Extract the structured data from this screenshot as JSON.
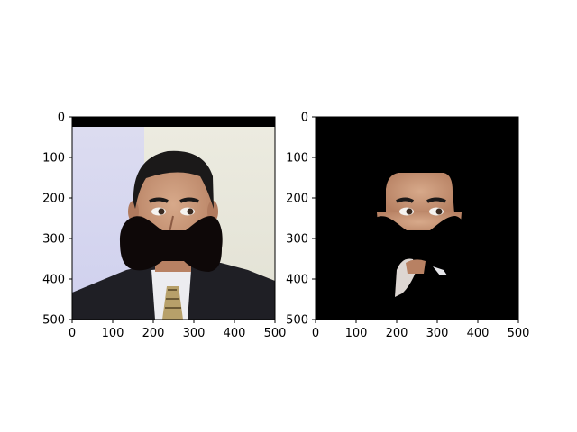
{
  "chart_data": [
    {
      "type": "image",
      "title": "",
      "xlim": [
        0,
        500
      ],
      "ylim": [
        500,
        0
      ],
      "x_ticks": [
        0,
        100,
        200,
        300,
        400,
        500
      ],
      "y_ticks": [
        0,
        100,
        200,
        300,
        400,
        500
      ],
      "x_tick_labels": [
        "0",
        "100",
        "200",
        "300",
        "400",
        "500"
      ],
      "y_tick_labels": [
        "0",
        "100",
        "200",
        "300",
        "400",
        "500"
      ],
      "content": "portrait photo with black bow-shaped occluder over mouth"
    },
    {
      "type": "image",
      "title": "",
      "xlim": [
        0,
        500
      ],
      "ylim": [
        500,
        0
      ],
      "x_ticks": [
        0,
        100,
        200,
        300,
        400,
        500
      ],
      "y_ticks": [
        0,
        100,
        200,
        300,
        400,
        500
      ],
      "x_tick_labels": [
        "0",
        "100",
        "200",
        "300",
        "400",
        "500"
      ],
      "y_tick_labels": [
        "0",
        "100",
        "200",
        "300",
        "400",
        "500"
      ],
      "content": "segmented face region on black background with bow-shaped mask"
    }
  ],
  "colors": {
    "background_left_top": "#d8d8ef",
    "background_right_top": "#e8e8dc",
    "skin": "#c8987a",
    "hair": "#1c1a1a",
    "suit": "#1e1e24",
    "shirt": "#e9e9ee",
    "tie": "#b8a26a",
    "occluder": "#0e0808",
    "mask_bg": "#000000"
  }
}
